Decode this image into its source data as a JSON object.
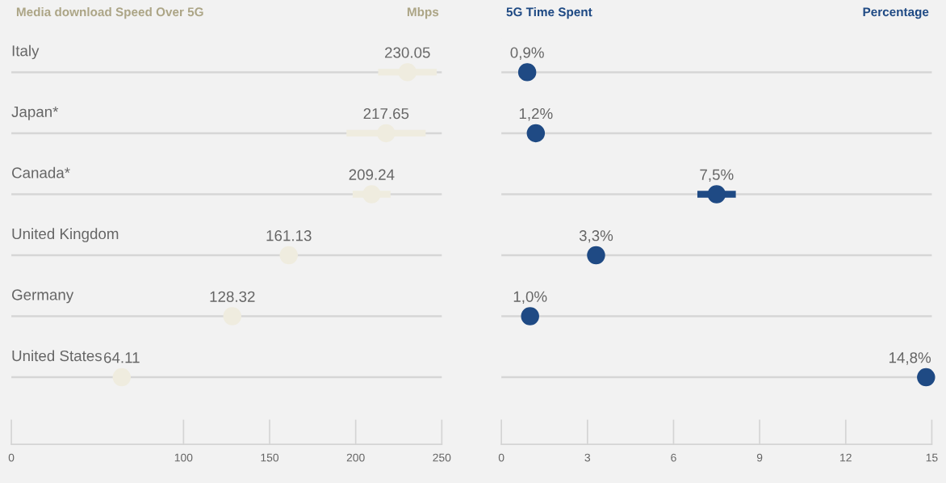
{
  "chart_data": [
    {
      "type": "scatter",
      "orientation": "horizontal",
      "title": "Media download Speed Over 5G",
      "xlabel": "Mbps",
      "categories": [
        "Italy",
        "Japan*",
        "Canada*",
        "United Kingdom",
        "Germany",
        "United States"
      ],
      "values": [
        230.05,
        217.65,
        209.24,
        161.13,
        128.32,
        64.11
      ],
      "errors": [
        17,
        23,
        11,
        null,
        null,
        null
      ],
      "value_labels": [
        "230.05",
        "217.65",
        "209.24",
        "161.13",
        "128.32",
        "64.11"
      ],
      "color": "#efecdf",
      "xlim": [
        0,
        250
      ],
      "xticks": [
        0,
        100,
        150,
        200,
        250
      ],
      "grid": "y",
      "marker": "circle"
    },
    {
      "type": "scatter",
      "orientation": "horizontal",
      "title": "5G Time Spent",
      "xlabel": "Percentage",
      "categories": [
        null,
        null,
        null,
        null,
        null,
        null
      ],
      "values": [
        0.9,
        1.2,
        7.5,
        3.3,
        1.0,
        14.8
      ],
      "errors": [
        null,
        null,
        0.67,
        null,
        null,
        null
      ],
      "value_labels": [
        "0,9%",
        "1,2%",
        "7,5%",
        "3,3%",
        "1,0%",
        "14,8%"
      ],
      "color": "#1f4a84",
      "xlim": [
        0,
        15
      ],
      "xticks": [
        0,
        3,
        6,
        9,
        12,
        15
      ],
      "grid": "y",
      "marker": "circle",
      "tick_labels": "x"
    }
  ]
}
